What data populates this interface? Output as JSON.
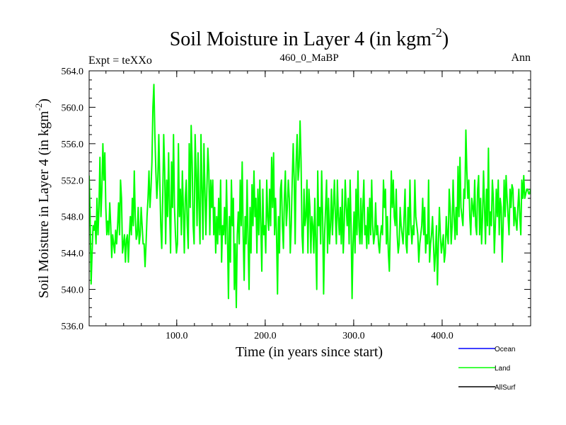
{
  "chart_data": {
    "type": "line",
    "title": "Soil Moisture in Layer 4 (in kgm",
    "title_sup": "-2",
    "title_end": ")",
    "subtitle_left": "Expt = teXXo",
    "subtitle_center": "460_0_MaBP",
    "subtitle_right": "Ann",
    "xlabel": "Time (in years since start)",
    "ylabel": "Soil Moisture in Layer 4 (in kgm",
    "ylabel_sup": "-2",
    "ylabel_end": ")",
    "xlim": [
      1,
      500
    ],
    "ylim": [
      536,
      564
    ],
    "x_ticks": [
      100,
      200,
      300,
      400
    ],
    "x_tick_labels": [
      "100.0",
      "200.0",
      "300.0",
      "400.0"
    ],
    "y_ticks": [
      536,
      540,
      544,
      548,
      552,
      556,
      560,
      564
    ],
    "y_tick_labels": [
      "536.0",
      "540.0",
      "544.0",
      "548.0",
      "552.0",
      "556.0",
      "560.0",
      "564.0"
    ],
    "legend_placement": "bottom-right",
    "series": [
      {
        "name": "Ocean",
        "color": "#0000ff",
        "values": []
      },
      {
        "name": "Land",
        "color": "#00ff00",
        "values": [
          552.5,
          548,
          540.6,
          544,
          547,
          546.5,
          547.5,
          545,
          550,
          546,
          549,
          554.5,
          548,
          551,
          556,
          552,
          555,
          549,
          546,
          547.5,
          546,
          549.5,
          547,
          543.5,
          546,
          545,
          544,
          546.5,
          545,
          547,
          549.5,
          546,
          552,
          550,
          544,
          545,
          546,
          543,
          545.5,
          546,
          543,
          546,
          548,
          546,
          550,
          547,
          553,
          548,
          545.5,
          546,
          549,
          545,
          546,
          549,
          547,
          545,
          545,
          542.5,
          545,
          548,
          550,
          553,
          549,
          551,
          554,
          560,
          562.5,
          557,
          553,
          550,
          552,
          557,
          552,
          547,
          544.5,
          550,
          557,
          553,
          545,
          552,
          548,
          555,
          549,
          544,
          554,
          549,
          557,
          549,
          546,
          544,
          545,
          556,
          548,
          551,
          546,
          553,
          549,
          544,
          550,
          552,
          547,
          544.5,
          556,
          549,
          558,
          554,
          547,
          545,
          557,
          553,
          547,
          555,
          549,
          545,
          557,
          551,
          545.5,
          556,
          551,
          546,
          551,
          555.5,
          553,
          546,
          552,
          549,
          552,
          546,
          549,
          544,
          548,
          545,
          550,
          546,
          552,
          543,
          547,
          546,
          549,
          545,
          552,
          546,
          539,
          548,
          543,
          552,
          547,
          550,
          540,
          545,
          538,
          546,
          548.5,
          545,
          552,
          547,
          554,
          546,
          541,
          548,
          545,
          552,
          545.5,
          540,
          549,
          544,
          551.5,
          547,
          553,
          548,
          550,
          544,
          551,
          546,
          552,
          547,
          542,
          551,
          546,
          547,
          544,
          552,
          548,
          546.5,
          551,
          547,
          554.5,
          549,
          555,
          546,
          550,
          546,
          539.5,
          548,
          544,
          551,
          552,
          547,
          544.5,
          550,
          553,
          547,
          549,
          552,
          550,
          544,
          547,
          552,
          556,
          552,
          545,
          554,
          557,
          552,
          553.5,
          558.5,
          554,
          546,
          544,
          551,
          547,
          548,
          552,
          544,
          551,
          549,
          544,
          548,
          547,
          544,
          550,
          545,
          540,
          553,
          547,
          549,
          545,
          553,
          548,
          539.5,
          546,
          549,
          552,
          544,
          550,
          545,
          547,
          551,
          546,
          549,
          552,
          548,
          545,
          552,
          548,
          546,
          549,
          545,
          551,
          544,
          547,
          552,
          549,
          547,
          550,
          545,
          552,
          547,
          539,
          545,
          548.5,
          544,
          551,
          546,
          553,
          547,
          545,
          550,
          545,
          549,
          552,
          546,
          547,
          544.5,
          549,
          545,
          550,
          546,
          552,
          547,
          545,
          546,
          549.5,
          546,
          547,
          545,
          544,
          546,
          547,
          546,
          552,
          549,
          551,
          545,
          548,
          544,
          542,
          547,
          553,
          549,
          552,
          548,
          547,
          551,
          546,
          544,
          545,
          549,
          547,
          546,
          545,
          548,
          551,
          545,
          544,
          549,
          546,
          552,
          547,
          545,
          547,
          546,
          552,
          548,
          547,
          546,
          543,
          545,
          546,
          547,
          550,
          546,
          549,
          544,
          546,
          545,
          552,
          543,
          545,
          546,
          548,
          545,
          542,
          544,
          547,
          540.5,
          545,
          549,
          546,
          544,
          545,
          546,
          543,
          544,
          548,
          546,
          545,
          551,
          549,
          545,
          547,
          552,
          548,
          545.5,
          549,
          546,
          553.5,
          548,
          554.5,
          549,
          548,
          547,
          551,
          550,
          557.5,
          553,
          550,
          552,
          548,
          546,
          550,
          549,
          548,
          552,
          547,
          546,
          551,
          552.5,
          546,
          550,
          545,
          548,
          553,
          549,
          545,
          551,
          547,
          555.5,
          546,
          548.5,
          547,
          552,
          550,
          544,
          547,
          551,
          548,
          552,
          546,
          550,
          549,
          543,
          547,
          552,
          548,
          552.5,
          550,
          548,
          546,
          551,
          549,
          551.5,
          551,
          547,
          549,
          547.5,
          546.5,
          549,
          551,
          548,
          546,
          552,
          550,
          552.5,
          550,
          550.5,
          551,
          551,
          550.5,
          550.5,
          551
        ]
      },
      {
        "name": "AllSurf",
        "color": "#000000",
        "values": []
      }
    ]
  }
}
